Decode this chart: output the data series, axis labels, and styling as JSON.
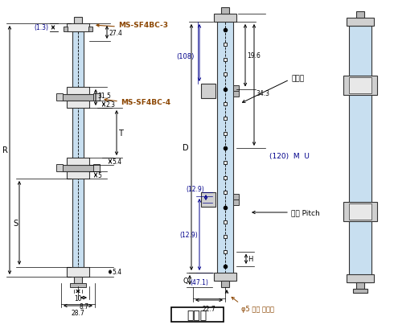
{
  "title": "투광기",
  "bg_color": "#ffffff",
  "line_color": "#333333",
  "light_blue": "#c8dff0",
  "gray1": "#d0d0d0",
  "gray2": "#b8b8b8",
  "gray3": "#e8e8e8",
  "lbl_brown": "#8B4500",
  "lbl_blue": "#00008B",
  "lbl_black": "#000000",
  "annotations": {
    "ms_sf4bc_3": "MS-SF4BC-3",
    "ms_sf4bc_4": "MS-SF4BC-4",
    "dim_1_3": "(1.3)",
    "dim_27_4": "27.4",
    "dim_31_5": "31.5",
    "dim_2_3": "2.3",
    "dim_5_4a": "5.4",
    "dim_5": "5",
    "dim_5_4b": "5.4",
    "dim_10": "10",
    "dim_8_7": "8.7",
    "dim_28_7": "28.7",
    "dim_R": "R",
    "dim_T": "T",
    "dim_S": "S",
    "dim_19_6": "19.6",
    "dim_34_3": "34.3",
    "dim_D": "D",
    "dim_108": "(108)",
    "dim_12_9a": "(12.9)",
    "dim_12_9b": "(12.9)",
    "dim_Q": "Q",
    "dim_47_1": "(47.1)",
    "dim_22_7": "22.7",
    "dim_120_MU": "(120)  M  U",
    "dim_H": "H",
    "label_detection": "검출폭",
    "label_pitch": "광축 Pitch",
    "label_cable": "φ5 회색 케이블"
  }
}
